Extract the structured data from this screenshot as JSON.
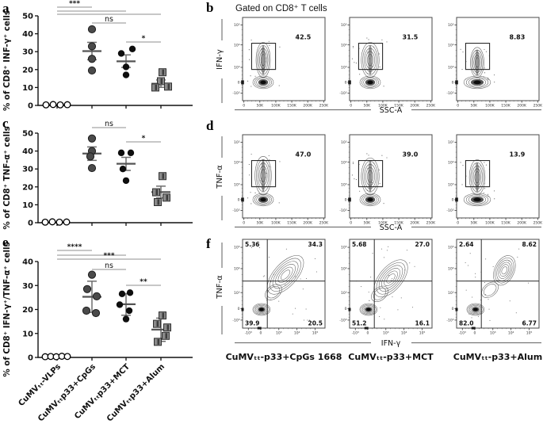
{
  "header": {
    "gated_title": "Gated on CD8⁺ T cells"
  },
  "panel_letters": {
    "a": "a",
    "b": "b",
    "c": "c",
    "d": "d",
    "e": "e",
    "f": "f"
  },
  "chart_data": [
    {
      "id": "a",
      "type": "scatter",
      "ylabel": "% of CD8⁺ INF-γ⁺ cells",
      "ylim": [
        0,
        50
      ],
      "yticks": [
        0,
        10,
        20,
        30,
        40,
        50
      ],
      "categories": [
        "CuMVₜₜ-VLPs",
        "CuMVₜₜp33+CpGs",
        "CuMVₜₜp33+MCT",
        "CuMVₜₜp33+Alum"
      ],
      "show_category_labels": false,
      "groups": [
        {
          "name": "CuMVTT-VLPs",
          "marker": "open-circle",
          "values": [
            0.3,
            0.5,
            0.3,
            0.4
          ],
          "jitter": [
            -14,
            -5,
            4,
            13
          ]
        },
        {
          "name": "CuMVTT-p33+CpGs",
          "marker": "dark-circle",
          "values": [
            42.5,
            33,
            26,
            19.5
          ],
          "jitter": [
            0,
            0,
            0,
            0
          ],
          "mean": 30.3,
          "err": [
            25.5,
            35.2
          ]
        },
        {
          "name": "CuMVTT-p33+MCT",
          "marker": "black-circle",
          "values": [
            31.5,
            29,
            21.5,
            17
          ],
          "jitter": [
            8,
            -6,
            0,
            0
          ],
          "mean": 24.6,
          "err": [
            21.2,
            28.2
          ]
        },
        {
          "name": "CuMVTT-p33+Alum",
          "marker": "gray-square",
          "values": [
            18.5,
            13.5,
            10.5,
            10
          ],
          "jitter": [
            2,
            0,
            9,
            -7
          ],
          "mean": 12.1,
          "err": [
            10.1,
            14.2
          ]
        }
      ],
      "significance": [
        {
          "from": 0,
          "to": 1,
          "label": "***"
        },
        {
          "from": 0,
          "to": 2,
          "label": ""
        },
        {
          "from": 0,
          "to": 3,
          "label": ""
        },
        {
          "from": 1,
          "to": 2,
          "label": "ns"
        },
        {
          "from": 2,
          "to": 3,
          "label": "*"
        }
      ]
    },
    {
      "id": "c",
      "type": "scatter",
      "ylabel": "% of CD8⁺ TNF-α⁺ cells",
      "ylim": [
        0,
        50
      ],
      "yticks": [
        0,
        10,
        20,
        30,
        40,
        50
      ],
      "categories": [
        "CuMVₜₜ-VLPs",
        "CuMVₜₜp33+CpGs",
        "CuMVₜₜp33+MCT",
        "CuMVₜₜp33+Alum"
      ],
      "show_category_labels": false,
      "groups": [
        {
          "name": "CuMVTT-VLPs",
          "marker": "open-circle",
          "values": [
            0.3,
            0.5,
            0.3,
            0.4
          ],
          "jitter": [
            -15,
            -6,
            3,
            12
          ]
        },
        {
          "name": "CuMVTT-p33+CpGs",
          "marker": "dark-circle",
          "values": [
            47,
            40,
            37,
            30.5
          ],
          "jitter": [
            0,
            0,
            -2,
            0
          ],
          "mean": 38.6,
          "err": [
            34.8,
            42.3
          ]
        },
        {
          "name": "CuMVTT-p33+MCT",
          "marker": "black-circle",
          "values": [
            39,
            39,
            30,
            23.5
          ],
          "jitter": [
            -6,
            6,
            -4,
            0
          ],
          "mean": 32.9,
          "err": [
            29.2,
            36.5
          ]
        },
        {
          "name": "CuMVTT-p33+Alum",
          "marker": "gray-square",
          "values": [
            26,
            17,
            14,
            11.5
          ],
          "jitter": [
            2,
            -6,
            7,
            -4
          ],
          "mean": 17.1,
          "err": [
            13.8,
            20.4
          ]
        }
      ],
      "significance": [
        {
          "from": 1,
          "to": 2,
          "label": "ns"
        },
        {
          "from": 2,
          "to": 3,
          "label": "*"
        }
      ]
    },
    {
      "id": "e",
      "type": "scatter",
      "ylabel": "% of CD8⁺ IFN-γ⁺/TNF-α⁺ cells",
      "ylim": [
        0,
        40
      ],
      "yticks": [
        0,
        10,
        20,
        30,
        40
      ],
      "categories": [
        "CuMVₜₜ-VLPs",
        "CuMVₜₜp33+CpGs",
        "CuMVₜₜp33+MCT",
        "CuMVₜₜp33+Alum"
      ],
      "show_category_labels": true,
      "groups": [
        {
          "name": "CuMVTT-VLPs",
          "marker": "open-circle",
          "values": [
            0.3,
            0.4,
            0.3,
            0.5,
            0.4
          ],
          "jitter": [
            -15,
            -8,
            -1,
            6,
            13
          ]
        },
        {
          "name": "CuMVTT-p33+CpGs",
          "marker": "dark-circle",
          "values": [
            34.5,
            28.5,
            25.5,
            19.5,
            18.5
          ],
          "jitter": [
            0,
            -6,
            6,
            -7,
            5
          ],
          "mean": 25.3,
          "err": [
            18.8,
            31.8
          ]
        },
        {
          "name": "CuMVTT-p33+MCT",
          "marker": "black-circle",
          "values": [
            27,
            26.5,
            22,
            19.5,
            16
          ],
          "jitter": [
            5,
            -5,
            -8,
            4,
            0
          ],
          "mean": 22.2,
          "err": [
            17.6,
            26.6
          ]
        },
        {
          "name": "CuMVTT-p33+Alum",
          "marker": "gray-square",
          "values": [
            17.5,
            14,
            12.5,
            9,
            6.5
          ],
          "jitter": [
            2,
            -5,
            8,
            6,
            -4
          ],
          "mean": 11.6,
          "err": [
            6.7,
            16.4
          ]
        }
      ],
      "significance": [
        {
          "from": 0,
          "to": 1,
          "label": "****"
        },
        {
          "from": 0,
          "to": 2,
          "label": ""
        },
        {
          "from": 0,
          "to": 3,
          "label": "***"
        },
        {
          "from": 1,
          "to": 2,
          "label": "ns"
        },
        {
          "from": 2,
          "to": 3,
          "label": "**"
        }
      ]
    },
    {
      "id": "b",
      "type": "flow-contour",
      "title": "Gated on CD8⁺ T cells",
      "ylabel": "IFN-γ",
      "xlabel": "SSC-A",
      "yticks": [
        "10⁵",
        "10⁴",
        "10³",
        "0",
        "-10³"
      ],
      "xticks": [
        "0",
        "50K",
        "100K",
        "150K",
        "200K",
        "250K"
      ],
      "plots": [
        {
          "gate_value": "42.5",
          "tail_top": 0.3,
          "tail_w": 1.0,
          "core_w": 1.0
        },
        {
          "gate_value": "31.5",
          "tail_top": 0.3,
          "tail_w": 1.25,
          "core_w": 1.0
        },
        {
          "gate_value": "8.83",
          "tail_top": 0.36,
          "tail_w": 0.95,
          "core_w": 1.3
        }
      ]
    },
    {
      "id": "d",
      "type": "flow-contour",
      "ylabel": "TNF-α",
      "xlabel": "SSC-A",
      "yticks": [
        "10⁵",
        "10⁴",
        "10³",
        "0",
        "-10³"
      ],
      "xticks": [
        "0",
        "50K",
        "100K",
        "150K",
        "200K",
        "250K"
      ],
      "plots": [
        {
          "gate_value": "47.0",
          "tail_top": 0.26,
          "tail_w": 1.15,
          "core_w": 1.0
        },
        {
          "gate_value": "39.0",
          "tail_top": 0.28,
          "tail_w": 1.25,
          "core_w": 1.0
        },
        {
          "gate_value": "13.9",
          "tail_top": 0.3,
          "tail_w": 1.1,
          "core_w": 1.3
        }
      ]
    },
    {
      "id": "f",
      "type": "flow-quadrant",
      "ylabel": "TNF-α",
      "xlabel": "IFN-γ",
      "yticks": [
        "10⁵",
        "10⁴",
        "10³",
        "0",
        "-10³"
      ],
      "xticks": [
        "-10³",
        "0",
        "10³",
        "10⁴",
        "10⁵"
      ],
      "plots": [
        {
          "quadrants": {
            "tl": "5.36",
            "tr": "34.3",
            "bl": "39.9",
            "br": "20.5"
          },
          "caption": "CuMVₜₜ-p33+CpGs 1668",
          "arm": {
            "cx": 0.52,
            "cy": 0.4,
            "rx": 0.29,
            "ry": 0.13,
            "angle": -48
          }
        },
        {
          "quadrants": {
            "tl": "5.68",
            "tr": "27.0",
            "bl": "51.2",
            "br": "16.1"
          },
          "caption": "CuMVₜₜ-p33+MCT",
          "arm": {
            "cx": 0.5,
            "cy": 0.44,
            "rx": 0.27,
            "ry": 0.13,
            "angle": -50
          }
        },
        {
          "quadrants": {
            "tl": "2.64",
            "tr": "8.62",
            "bl": "82.0",
            "br": "6.77"
          },
          "caption": "CuMVₜₜ-p33+Alum",
          "arm": {
            "cx": 0.58,
            "cy": 0.35,
            "rx": 0.19,
            "ry": 0.11,
            "angle": -66
          }
        }
      ]
    }
  ]
}
